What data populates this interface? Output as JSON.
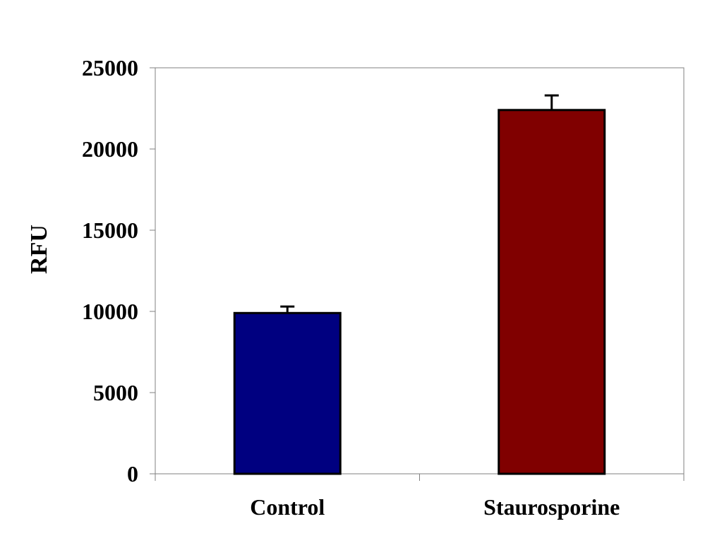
{
  "chart_data": {
    "type": "bar",
    "title": "",
    "xlabel": "",
    "ylabel": "RFU",
    "categories": [
      "Control",
      "Staurosporine"
    ],
    "values": [
      9900,
      22400
    ],
    "error_bars": [
      400,
      900
    ],
    "colors": [
      "#000080",
      "#800000"
    ],
    "ylim": [
      0,
      25000
    ],
    "yticks": [
      "0",
      "5000",
      "10000",
      "15000",
      "20000",
      "25000"
    ],
    "grid": false,
    "legend": null
  }
}
